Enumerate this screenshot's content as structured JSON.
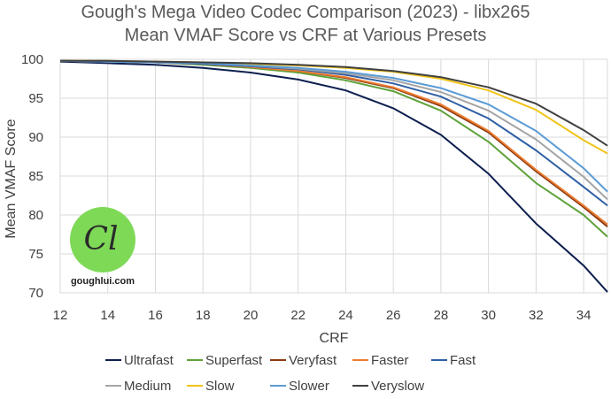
{
  "chart_data": {
    "type": "line",
    "title": "Gough's Mega Video Codec Comparison (2023) - libx265",
    "subtitle": "Mean VMAF Score vs CRF at Various Presets",
    "xlabel": "CRF",
    "ylabel": "Mean VMAF Score",
    "xlim": [
      12,
      35
    ],
    "ylim": [
      70,
      100
    ],
    "xticks": [
      "12",
      "14",
      "16",
      "18",
      "20",
      "22",
      "24",
      "26",
      "28",
      "30",
      "32",
      "34"
    ],
    "yticks": [
      "100",
      "95",
      "90",
      "85",
      "80",
      "75",
      "70"
    ],
    "grid": true,
    "legend_position": "bottom",
    "x": [
      12,
      14,
      16,
      18,
      20,
      22,
      24,
      26,
      28,
      30,
      32,
      34,
      35
    ],
    "series": [
      {
        "name": "Ultrafast",
        "color": "#0d1f4f",
        "values": [
          99.7,
          99.5,
          99.3,
          98.9,
          98.3,
          97.4,
          96.0,
          93.7,
          90.3,
          85.3,
          78.9,
          73.5,
          70.1
        ]
      },
      {
        "name": "Superfast",
        "color": "#5ea23a",
        "values": [
          99.8,
          99.7,
          99.6,
          99.3,
          98.9,
          98.3,
          97.3,
          95.9,
          93.4,
          89.4,
          84.1,
          80.0,
          77.2
        ]
      },
      {
        "name": "Veryfast",
        "color": "#8b3a10",
        "values": [
          99.8,
          99.7,
          99.6,
          99.4,
          99.0,
          98.5,
          97.6,
          96.3,
          94.0,
          90.6,
          85.6,
          81.0,
          78.5
        ]
      },
      {
        "name": "Faster",
        "color": "#ed7d31",
        "values": [
          99.8,
          99.7,
          99.6,
          99.4,
          99.0,
          98.5,
          97.7,
          96.4,
          94.2,
          90.8,
          85.8,
          81.2,
          78.8
        ]
      },
      {
        "name": "Fast",
        "color": "#2e5fa3",
        "values": [
          99.8,
          99.7,
          99.6,
          99.4,
          99.1,
          98.7,
          98.0,
          96.9,
          95.2,
          92.4,
          88.3,
          83.6,
          81.2
        ]
      },
      {
        "name": "Medium",
        "color": "#a5a5a5",
        "values": [
          99.8,
          99.7,
          99.6,
          99.5,
          99.2,
          98.8,
          98.2,
          97.3,
          95.8,
          93.4,
          89.7,
          84.9,
          82.0
        ]
      },
      {
        "name": "Slow",
        "color": "#f0c419",
        "values": [
          99.8,
          99.8,
          99.7,
          99.6,
          99.4,
          99.2,
          98.9,
          98.4,
          97.5,
          96.0,
          93.5,
          89.6,
          87.9
        ]
      },
      {
        "name": "Slower",
        "color": "#5b9bd5",
        "values": [
          99.8,
          99.7,
          99.6,
          99.5,
          99.2,
          98.9,
          98.4,
          97.6,
          96.3,
          94.2,
          90.8,
          86.0,
          83.0
        ]
      },
      {
        "name": "Veryslow",
        "color": "#404040",
        "values": [
          99.8,
          99.8,
          99.7,
          99.6,
          99.5,
          99.3,
          99.0,
          98.5,
          97.7,
          96.4,
          94.3,
          90.9,
          88.9
        ]
      }
    ]
  },
  "watermark": {
    "site": "goughlui.com",
    "monogram": "Cl"
  }
}
